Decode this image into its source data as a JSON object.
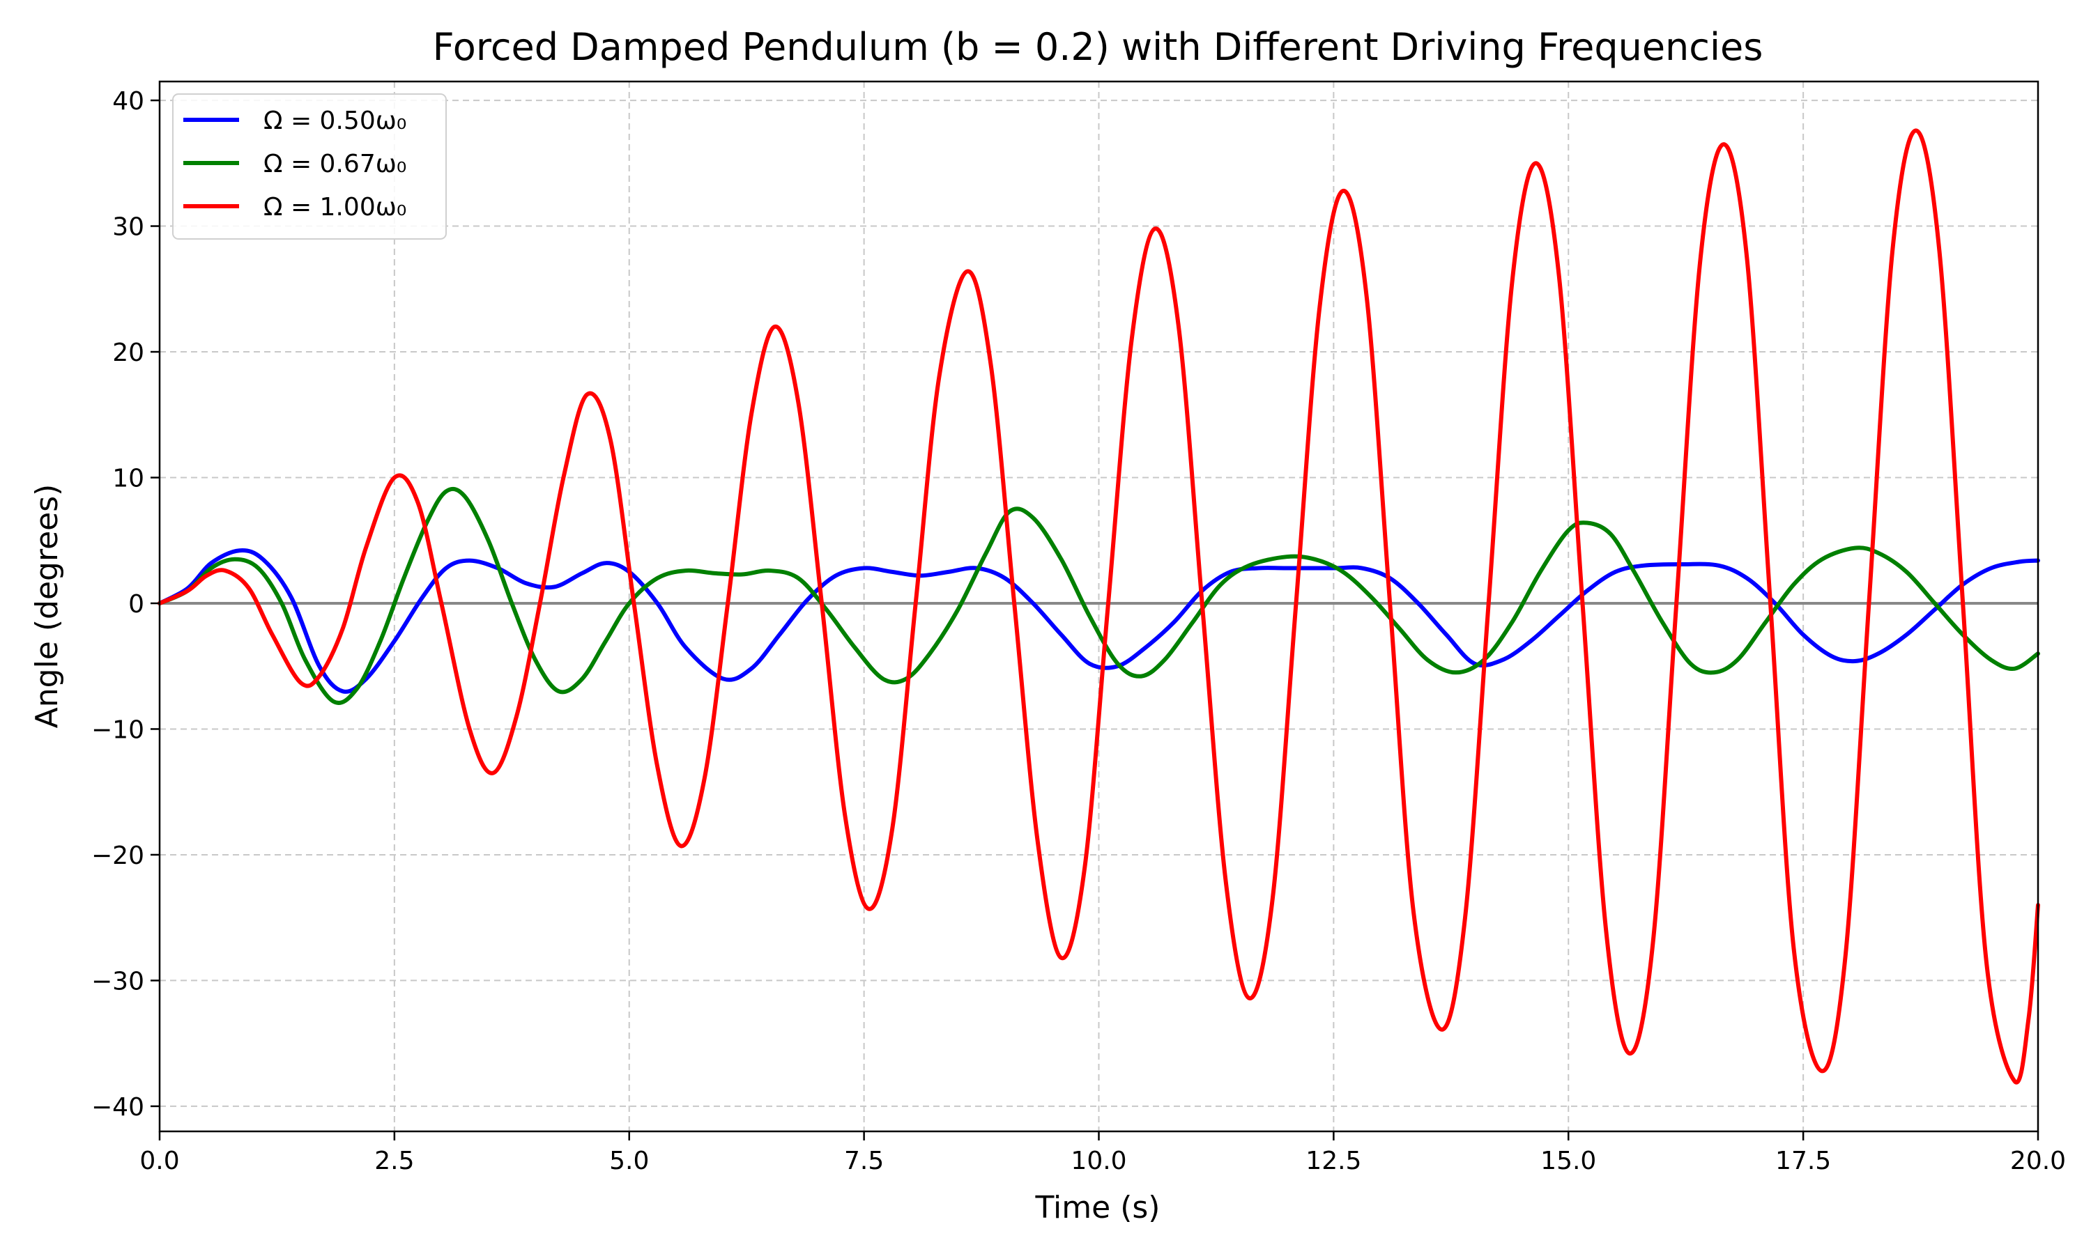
{
  "chart_data": {
    "type": "line",
    "title": "Forced Damped Pendulum (b = 0.2) with Different Driving Frequencies",
    "xlabel": "Time (s)",
    "ylabel": "Angle (degrees)",
    "xlim": [
      0,
      20
    ],
    "ylim": [
      -42,
      41.5
    ],
    "xticks": [
      0,
      2.5,
      5,
      7.5,
      10,
      12.5,
      15,
      17.5,
      20
    ],
    "xtick_labels": [
      "0.0",
      "2.5",
      "5.0",
      "7.5",
      "10.0",
      "12.5",
      "15.0",
      "17.5",
      "20.0"
    ],
    "yticks": [
      -40,
      -30,
      -20,
      -10,
      0,
      10,
      20,
      30,
      40
    ],
    "ytick_labels": [
      "−40",
      "−30",
      "−20",
      "−10",
      "0",
      "10",
      "20",
      "30",
      "40"
    ],
    "grid": true,
    "grid_style": "dashed",
    "legend_position": "top-left",
    "zero_line": true,
    "zero_line_color": "#888888",
    "series": [
      {
        "name": "Ω = 0.50ω₀",
        "color": "#0000ff",
        "points": [
          [
            0,
            0
          ],
          [
            0.3,
            1.2
          ],
          [
            0.55,
            3.2
          ],
          [
            0.85,
            4.2
          ],
          [
            1.1,
            3.5
          ],
          [
            1.4,
            0.5
          ],
          [
            1.7,
            -5.0
          ],
          [
            1.95,
            -7.0
          ],
          [
            2.2,
            -6.0
          ],
          [
            2.5,
            -3.0
          ],
          [
            2.8,
            0.5
          ],
          [
            3.05,
            2.8
          ],
          [
            3.3,
            3.4
          ],
          [
            3.6,
            2.8
          ],
          [
            3.9,
            1.6
          ],
          [
            4.2,
            1.3
          ],
          [
            4.5,
            2.4
          ],
          [
            4.75,
            3.2
          ],
          [
            5.0,
            2.5
          ],
          [
            5.3,
            0
          ],
          [
            5.6,
            -3.5
          ],
          [
            6.0,
            -6.0
          ],
          [
            6.3,
            -5.2
          ],
          [
            6.6,
            -2.5
          ],
          [
            6.9,
            0.3
          ],
          [
            7.2,
            2.2
          ],
          [
            7.5,
            2.8
          ],
          [
            7.8,
            2.5
          ],
          [
            8.1,
            2.2
          ],
          [
            8.4,
            2.5
          ],
          [
            8.7,
            2.8
          ],
          [
            9.0,
            2.0
          ],
          [
            9.3,
            0
          ],
          [
            9.6,
            -2.5
          ],
          [
            9.9,
            -4.8
          ],
          [
            10.2,
            -5.0
          ],
          [
            10.5,
            -3.5
          ],
          [
            10.8,
            -1.5
          ],
          [
            11.1,
            1.0
          ],
          [
            11.4,
            2.5
          ],
          [
            11.7,
            2.8
          ],
          [
            12.0,
            2.8
          ],
          [
            12.5,
            2.8
          ],
          [
            12.8,
            2.8
          ],
          [
            13.1,
            2.0
          ],
          [
            13.4,
            0
          ],
          [
            13.7,
            -2.5
          ],
          [
            14.0,
            -4.8
          ],
          [
            14.3,
            -4.5
          ],
          [
            14.6,
            -3.0
          ],
          [
            14.9,
            -1.0
          ],
          [
            15.2,
            1.0
          ],
          [
            15.5,
            2.5
          ],
          [
            15.8,
            3.0
          ],
          [
            16.2,
            3.1
          ],
          [
            16.6,
            3.0
          ],
          [
            16.9,
            2.0
          ],
          [
            17.2,
            0
          ],
          [
            17.5,
            -2.5
          ],
          [
            17.8,
            -4.2
          ],
          [
            18.05,
            -4.6
          ],
          [
            18.3,
            -4.0
          ],
          [
            18.6,
            -2.5
          ],
          [
            18.9,
            -0.5
          ],
          [
            19.2,
            1.5
          ],
          [
            19.5,
            2.8
          ],
          [
            19.8,
            3.3
          ],
          [
            20.0,
            3.4
          ]
        ]
      },
      {
        "name": "Ω = 0.67ω₀",
        "color": "#008000",
        "points": [
          [
            0,
            0
          ],
          [
            0.3,
            1.0
          ],
          [
            0.55,
            2.8
          ],
          [
            0.8,
            3.5
          ],
          [
            1.05,
            2.8
          ],
          [
            1.3,
            0
          ],
          [
            1.55,
            -4.5
          ],
          [
            1.85,
            -7.8
          ],
          [
            2.1,
            -6.8
          ],
          [
            2.35,
            -3.0
          ],
          [
            2.6,
            2.0
          ],
          [
            2.85,
            6.5
          ],
          [
            3.05,
            8.9
          ],
          [
            3.25,
            8.5
          ],
          [
            3.5,
            5.0
          ],
          [
            3.75,
            0
          ],
          [
            4.0,
            -4.5
          ],
          [
            4.25,
            -7.0
          ],
          [
            4.5,
            -6.0
          ],
          [
            4.75,
            -3.0
          ],
          [
            5.0,
            0
          ],
          [
            5.3,
            2.0
          ],
          [
            5.6,
            2.6
          ],
          [
            5.9,
            2.4
          ],
          [
            6.2,
            2.3
          ],
          [
            6.5,
            2.6
          ],
          [
            6.8,
            2.0
          ],
          [
            7.1,
            -0.5
          ],
          [
            7.4,
            -3.5
          ],
          [
            7.7,
            -6.0
          ],
          [
            7.95,
            -6.0
          ],
          [
            8.2,
            -4.0
          ],
          [
            8.5,
            -0.5
          ],
          [
            8.8,
            4.0
          ],
          [
            9.05,
            7.3
          ],
          [
            9.3,
            6.8
          ],
          [
            9.6,
            3.5
          ],
          [
            9.9,
            -1.0
          ],
          [
            10.2,
            -4.8
          ],
          [
            10.45,
            -5.8
          ],
          [
            10.7,
            -4.5
          ],
          [
            11.0,
            -1.5
          ],
          [
            11.3,
            1.5
          ],
          [
            11.6,
            3.0
          ],
          [
            12.0,
            3.7
          ],
          [
            12.3,
            3.5
          ],
          [
            12.6,
            2.5
          ],
          [
            12.9,
            0.5
          ],
          [
            13.2,
            -2.0
          ],
          [
            13.5,
            -4.5
          ],
          [
            13.8,
            -5.5
          ],
          [
            14.1,
            -4.5
          ],
          [
            14.4,
            -1.5
          ],
          [
            14.7,
            2.5
          ],
          [
            15.0,
            5.8
          ],
          [
            15.2,
            6.4
          ],
          [
            15.45,
            5.5
          ],
          [
            15.7,
            2.5
          ],
          [
            16.0,
            -1.5
          ],
          [
            16.3,
            -4.8
          ],
          [
            16.55,
            -5.5
          ],
          [
            16.8,
            -4.5
          ],
          [
            17.1,
            -1.5
          ],
          [
            17.4,
            1.5
          ],
          [
            17.7,
            3.5
          ],
          [
            18.05,
            4.4
          ],
          [
            18.3,
            4.0
          ],
          [
            18.6,
            2.5
          ],
          [
            18.9,
            0
          ],
          [
            19.2,
            -2.5
          ],
          [
            19.5,
            -4.5
          ],
          [
            19.75,
            -5.2
          ],
          [
            20.0,
            -4.0
          ]
        ]
      },
      {
        "name": "Ω = 1.00ω₀",
        "color": "#ff0000",
        "points": [
          [
            0,
            0
          ],
          [
            0.3,
            1.0
          ],
          [
            0.5,
            2.2
          ],
          [
            0.7,
            2.6
          ],
          [
            0.95,
            1.2
          ],
          [
            1.2,
            -2.5
          ],
          [
            1.5,
            -6.3
          ],
          [
            1.7,
            -5.8
          ],
          [
            1.95,
            -2.0
          ],
          [
            2.2,
            4.5
          ],
          [
            2.5,
            10.0
          ],
          [
            2.75,
            8.0
          ],
          [
            3.0,
            0
          ],
          [
            3.3,
            -10.0
          ],
          [
            3.55,
            -13.5
          ],
          [
            3.8,
            -9.0
          ],
          [
            4.05,
            0
          ],
          [
            4.3,
            10.0
          ],
          [
            4.55,
            16.6
          ],
          [
            4.8,
            13.0
          ],
          [
            5.05,
            0
          ],
          [
            5.3,
            -13.0
          ],
          [
            5.55,
            -19.3
          ],
          [
            5.8,
            -14.0
          ],
          [
            6.05,
            0
          ],
          [
            6.3,
            15.0
          ],
          [
            6.55,
            22.0
          ],
          [
            6.8,
            16.0
          ],
          [
            7.05,
            0
          ],
          [
            7.3,
            -17.0
          ],
          [
            7.55,
            -24.3
          ],
          [
            7.8,
            -18.0
          ],
          [
            8.05,
            0
          ],
          [
            8.3,
            18.0
          ],
          [
            8.6,
            26.4
          ],
          [
            8.85,
            19.0
          ],
          [
            9.1,
            0
          ],
          [
            9.35,
            -19.0
          ],
          [
            9.6,
            -28.2
          ],
          [
            9.85,
            -21.0
          ],
          [
            10.1,
            0
          ],
          [
            10.35,
            21.0
          ],
          [
            10.6,
            29.8
          ],
          [
            10.85,
            22.0
          ],
          [
            11.1,
            0
          ],
          [
            11.35,
            -22.0
          ],
          [
            11.6,
            -31.4
          ],
          [
            11.85,
            -23.5
          ],
          [
            12.1,
            0
          ],
          [
            12.35,
            23.5
          ],
          [
            12.6,
            32.8
          ],
          [
            12.85,
            24.5
          ],
          [
            13.1,
            0
          ],
          [
            13.35,
            -24.5
          ],
          [
            13.65,
            -33.9
          ],
          [
            13.9,
            -25.0
          ],
          [
            14.15,
            0
          ],
          [
            14.4,
            25.5
          ],
          [
            14.65,
            35.0
          ],
          [
            14.9,
            26.0
          ],
          [
            15.15,
            0
          ],
          [
            15.4,
            -26.0
          ],
          [
            15.65,
            -35.8
          ],
          [
            15.9,
            -27.0
          ],
          [
            16.15,
            0
          ],
          [
            16.4,
            27.0
          ],
          [
            16.65,
            36.5
          ],
          [
            16.9,
            27.5
          ],
          [
            17.15,
            0
          ],
          [
            17.4,
            -27.5
          ],
          [
            17.7,
            -37.2
          ],
          [
            17.95,
            -28.0
          ],
          [
            18.2,
            0
          ],
          [
            18.45,
            28.0
          ],
          [
            18.7,
            37.6
          ],
          [
            18.95,
            28.0
          ],
          [
            19.2,
            0
          ],
          [
            19.45,
            -28.5
          ],
          [
            19.75,
            -38.0
          ],
          [
            19.9,
            -33.0
          ],
          [
            20.0,
            -24.0
          ]
        ]
      }
    ]
  }
}
